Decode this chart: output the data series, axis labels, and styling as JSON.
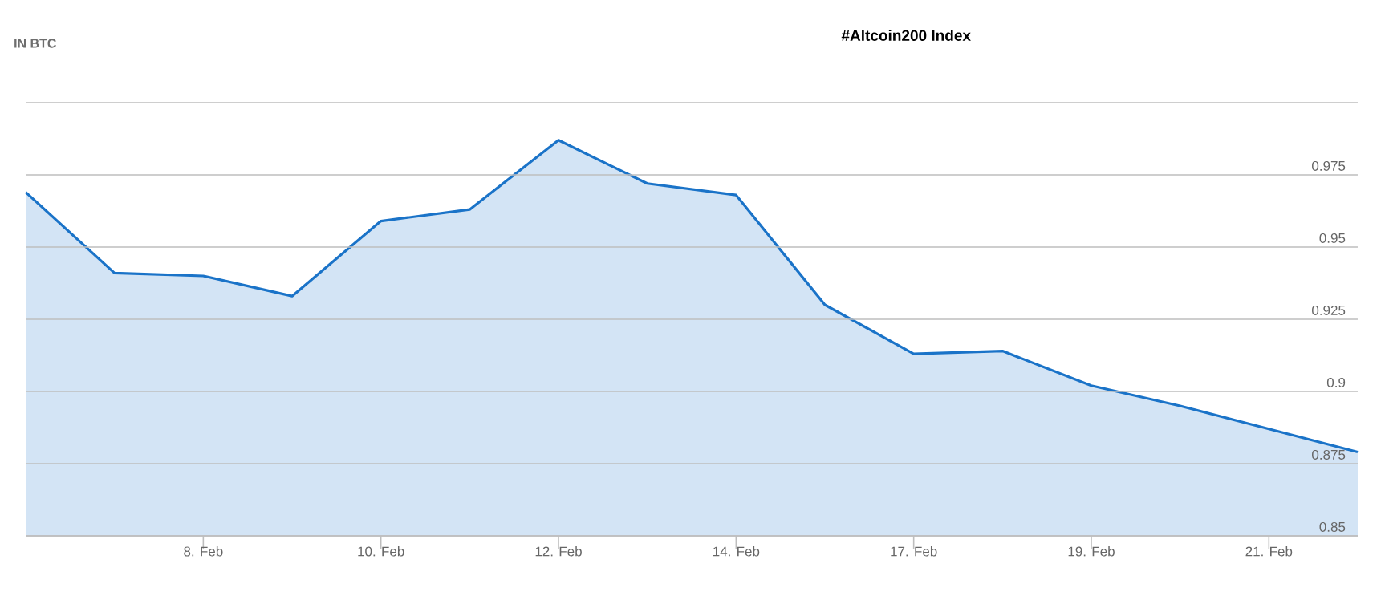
{
  "chart_data": {
    "type": "area",
    "title": "#Altcoin200 Index",
    "ylabel": "IN BTC",
    "categories": [
      null,
      null,
      "8. Feb",
      null,
      "10. Feb",
      null,
      "12. Feb",
      null,
      "14. Feb",
      null,
      "17. Feb",
      null,
      "19. Feb",
      null,
      "21. Feb",
      null
    ],
    "series": [
      {
        "color": "#1a73c8",
        "values": [
          0.969,
          0.941,
          0.94,
          0.933,
          0.959,
          0.963,
          0.987,
          0.972,
          0.968,
          0.93,
          0.913,
          0.914,
          0.902,
          0.895,
          0.887,
          0.879
        ]
      }
    ],
    "ylim": [
      0.85,
      1.0
    ],
    "yticks": [
      0.85,
      0.875,
      0.9,
      0.925,
      0.95,
      0.975,
      {
        "value": 1.0,
        "label": null
      }
    ],
    "grid": "y",
    "marker": "none",
    "line_style": "solid"
  }
}
